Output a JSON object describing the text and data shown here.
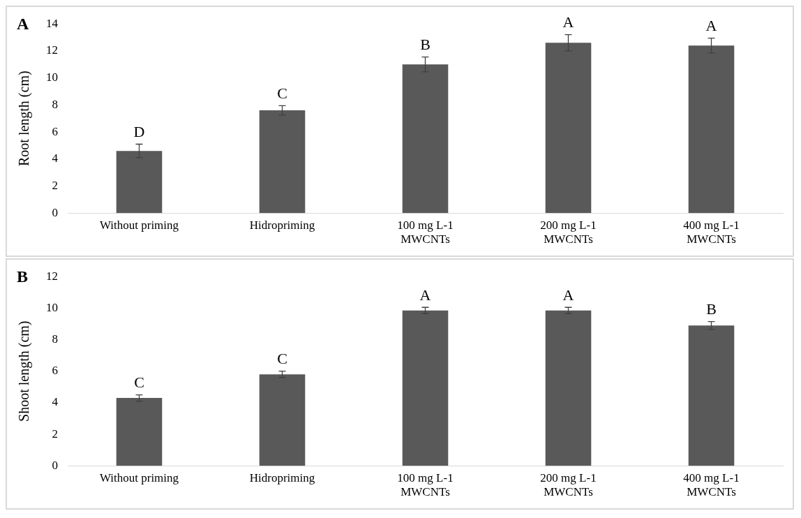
{
  "chart_data": [
    {
      "type": "bar",
      "title": "A",
      "ylabel": "Root length (cm)",
      "categories": [
        "Without priming",
        "Hidropriming",
        "100 mg L-1 MWCNTs",
        "200 mg L-1 MWCNTs",
        "400 mg L-1 MWCNTs"
      ],
      "values": [
        4.6,
        7.6,
        11.0,
        12.6,
        12.4
      ],
      "errors": [
        0.5,
        0.35,
        0.55,
        0.6,
        0.55
      ],
      "color": "#595959",
      "ylim": [
        0,
        14
      ],
      "yticks": [
        0,
        2,
        4,
        6,
        8,
        10,
        12,
        14
      ],
      "grid": false,
      "annotations": [
        {
          "text": "D",
          "x": "Without priming",
          "y": 5.1
        },
        {
          "text": "C",
          "x": "Hidropriming",
          "y": 7.95
        },
        {
          "text": "B",
          "x": "100 mg L-1 MWCNTs",
          "y": 11.55
        },
        {
          "text": "A",
          "x": "200 mg L-1 MWCNTs",
          "y": 13.2
        },
        {
          "text": "A",
          "x": "400 mg L-1 MWCNTs",
          "y": 12.95
        }
      ]
    },
    {
      "type": "bar",
      "title": "B",
      "ylabel": "Shoot length (cm)",
      "categories": [
        "Without priming",
        "Hidropriming",
        "100 mg L-1 MWCNTs",
        "200 mg L-1 MWCNTs",
        "400 mg L-1 MWCNTs"
      ],
      "values": [
        4.3,
        5.8,
        9.85,
        9.85,
        8.9
      ],
      "errors": [
        0.2,
        0.2,
        0.2,
        0.2,
        0.25
      ],
      "color": "#595959",
      "ylim": [
        0,
        12
      ],
      "yticks": [
        0,
        2,
        4,
        6,
        8,
        10,
        12
      ],
      "grid": false,
      "annotations": [
        {
          "text": "C",
          "x": "Without priming",
          "y": 4.5
        },
        {
          "text": "C",
          "x": "Hidropriming",
          "y": 6.0
        },
        {
          "text": "A",
          "x": "100 mg L-1 MWCNTs",
          "y": 10.05
        },
        {
          "text": "A",
          "x": "200 mg L-1 MWCNTs",
          "y": 10.05
        },
        {
          "text": "B",
          "x": "400 mg L-1 MWCNTs",
          "y": 9.15
        }
      ]
    }
  ]
}
